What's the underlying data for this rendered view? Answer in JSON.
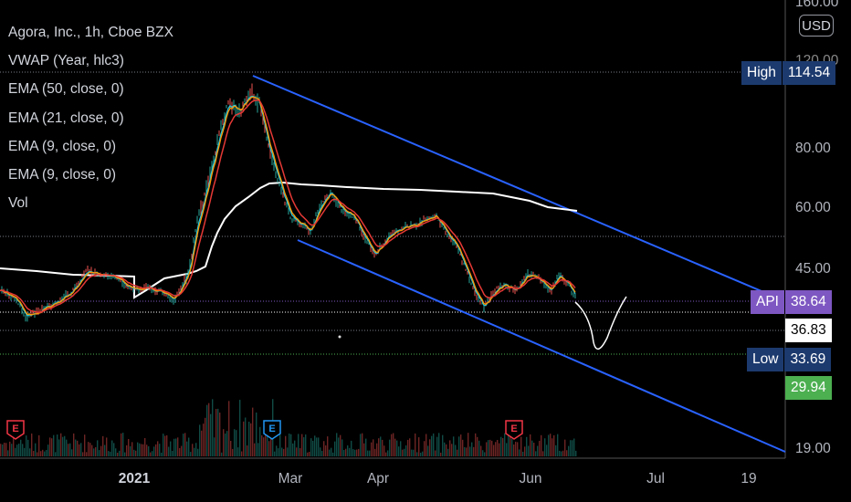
{
  "header": {
    "title": "Agora, Inc., 1h, Cboe BZX",
    "indicators": [
      "VWAP (Year, hlc3)",
      "EMA (50, close, 0)",
      "EMA (21, close, 0)",
      "EMA (9, close, 0)",
      "EMA (9, close, 0)",
      "Vol"
    ]
  },
  "currency": "USD",
  "y_axis": {
    "ticks": [
      "160.00",
      "120.00",
      "80.00",
      "60.00",
      "45.00",
      "19.00"
    ]
  },
  "x_axis": {
    "ticks": [
      "2021",
      "Mar",
      "Apr",
      "Jun",
      "Jul",
      "19"
    ]
  },
  "price_tags": {
    "high": {
      "label": "High",
      "value": "114.54",
      "color": "#1c3a6e"
    },
    "api": {
      "label": "API",
      "value": "38.64",
      "color": "#7e57c2"
    },
    "last": {
      "value": "36.83",
      "color": "#ffffff"
    },
    "low": {
      "label": "Low",
      "value": "33.69",
      "color": "#1c3a6e"
    },
    "green": {
      "value": "29.94",
      "color": "#4caf50"
    }
  },
  "earnings_markers": [
    {
      "letter": "E",
      "color": "#f23645"
    },
    {
      "letter": "E",
      "color": "#2196f3"
    },
    {
      "letter": "E",
      "color": "#f23645"
    }
  ],
  "colors": {
    "channel": "#2962ff",
    "ema50": "#ffffff",
    "ema21": "#e53935",
    "ema9": "#ff9800",
    "ema9b": "#26c6da",
    "vwap": "#ffffff"
  }
}
